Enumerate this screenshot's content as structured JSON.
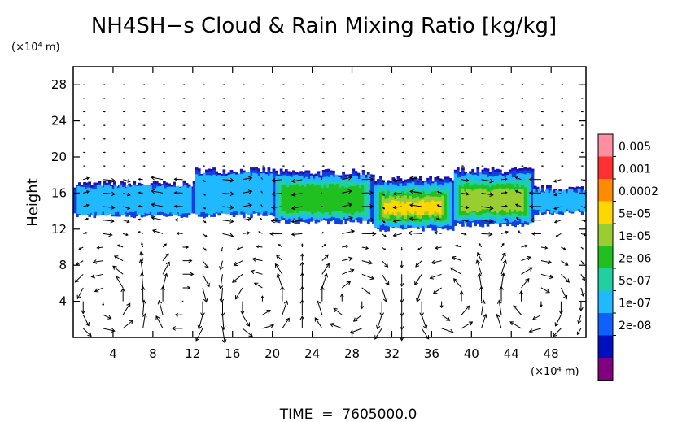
{
  "chart_data": {
    "type": "heatmap",
    "title": "NH4SH−s Cloud & Rain Mixing Ratio [kg/kg]",
    "ylabel": "Height",
    "y_unit": "(×10⁴ m)",
    "x_unit": "(×10⁴ m)",
    "footer": "TIME  =  7605000.0",
    "xlim": [
      0,
      51.5
    ],
    "ylim": [
      0,
      30
    ],
    "x_ticks": [
      4,
      8,
      12,
      16,
      20,
      24,
      28,
      32,
      36,
      40,
      44,
      48
    ],
    "y_ticks": [
      4,
      8,
      12,
      16,
      20,
      24,
      28
    ],
    "colorbar": {
      "labels": [
        "0.005",
        "0.001",
        "0.0002",
        "5e-05",
        "1e-05",
        "2e-06",
        "5e-07",
        "1e-07",
        "2e-08"
      ],
      "colors": [
        "#ff8fa0",
        "#ff3030",
        "#ff8c00",
        "#ffd700",
        "#9acd32",
        "#20c020",
        "#20d0a0",
        "#20b8ff",
        "#1060ff",
        "#0010c0",
        "#800080"
      ]
    },
    "cloud_layer": {
      "note_range_y": [
        12.5,
        19
      ],
      "segments": [
        {
          "x": [
            0,
            12
          ],
          "y": [
            13.5,
            17.0
          ],
          "level": "1e-07"
        },
        {
          "x": [
            12,
            20
          ],
          "y": [
            13.5,
            18.5
          ],
          "level": "5e-07"
        },
        {
          "x": [
            20,
            30
          ],
          "y": [
            12.8,
            18.3
          ],
          "level": "1e-05"
        },
        {
          "x": [
            30,
            38
          ],
          "y": [
            12.0,
            17.5
          ],
          "level": "0.0002"
        },
        {
          "x": [
            38,
            46
          ],
          "y": [
            12.5,
            18.5
          ],
          "level": "5e-05"
        },
        {
          "x": [
            46,
            51.5
          ],
          "y": [
            13.8,
            16.5
          ],
          "level": "5e-07"
        }
      ]
    }
  }
}
